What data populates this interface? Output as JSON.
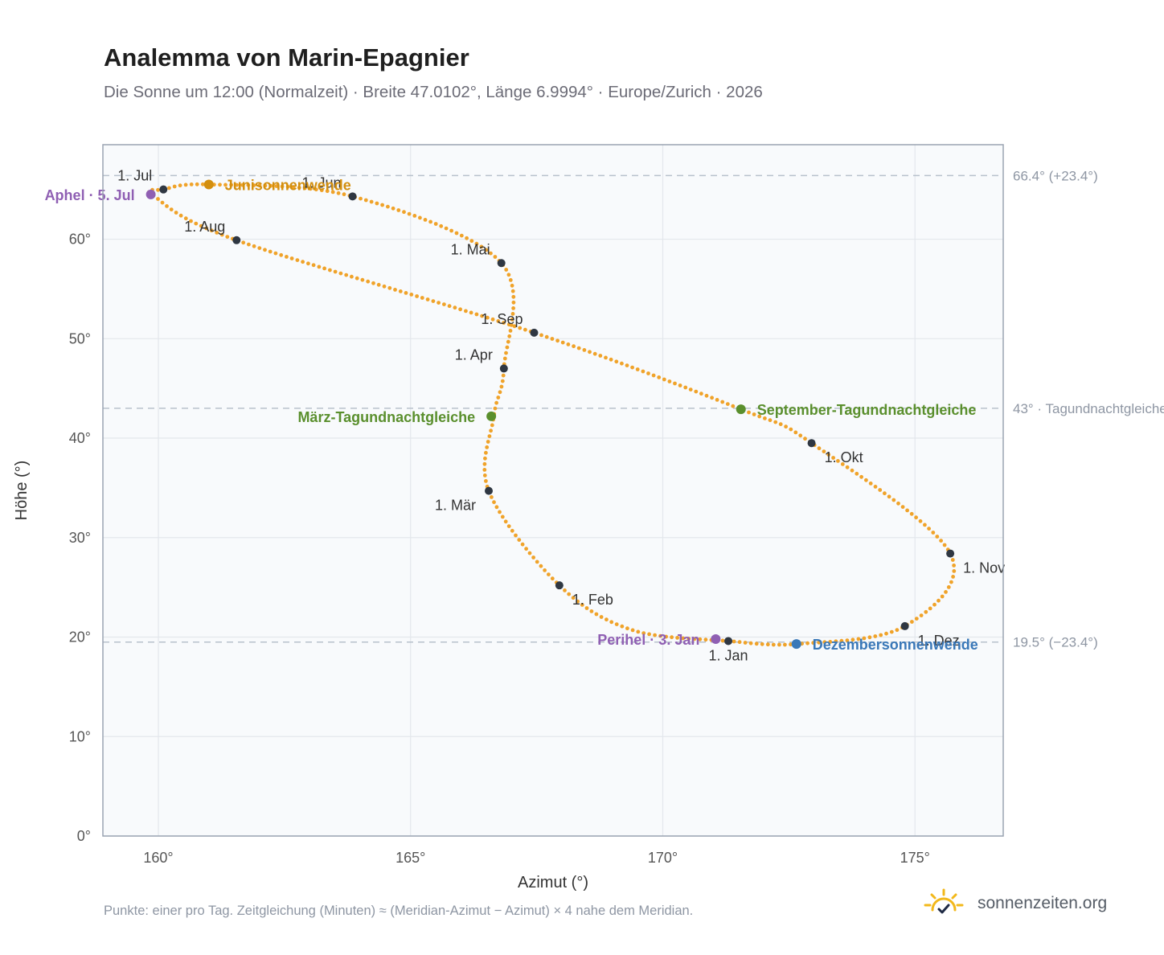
{
  "header": {
    "title": "Analemma von Marin-Epagnier",
    "subtitle": "Die Sonne um 12:00 (Normalzeit) · Breite 47.0102°, Länge 6.9994° · Europe/Zurich · 2026"
  },
  "footer": {
    "note": "Punkte: einer pro Tag. Zeitgleichung (Minuten) ≈ (Meridian-Azimut − Azimut) × 4 nahe dem Meridian.",
    "brand": "sonnenzeiten.org",
    "logo_icon": "sun-check-icon"
  },
  "colors": {
    "curve": "#f0a32a",
    "month_marker": "#2f3742",
    "aphel_perihel": "#8f5fb3",
    "june_solstice": "#d38f0f",
    "equinox": "#5a8f2d",
    "december_solstice": "#3a78b8",
    "plot_background": "#f8fafc",
    "plot_border": "#9aa4b2",
    "grid": "#e3e7ec",
    "reference_line": "#b8c1cc"
  },
  "chart_data": {
    "type": "scatter",
    "xlabel": "Azimut (°)",
    "ylabel": "Höhe (°)",
    "xlim": [
      158.9,
      176.75
    ],
    "ylim": [
      0,
      69.5
    ],
    "xticks": [
      160,
      165,
      170,
      175
    ],
    "xtick_labels": [
      "160°",
      "165°",
      "170°",
      "175°"
    ],
    "yticks": [
      0,
      10,
      20,
      30,
      40,
      50,
      60
    ],
    "ytick_labels": [
      "0°",
      "10°",
      "20°",
      "30°",
      "40°",
      "50°",
      "60°"
    ],
    "grid": true,
    "reference_lines": [
      {
        "y": 66.4,
        "label": "66.4° (+23.4°)"
      },
      {
        "y": 43.0,
        "label": "43° · Tagundnachtgleiche"
      },
      {
        "y": 19.5,
        "label": "19.5° (−23.4°)"
      }
    ],
    "path_anchors": [
      {
        "x": 171.3,
        "y": 19.6
      },
      {
        "x": 169.4,
        "y": 20.7
      },
      {
        "x": 167.95,
        "y": 25.2
      },
      {
        "x": 166.55,
        "y": 34.7
      },
      {
        "x": 166.65,
        "y": 42.2
      },
      {
        "x": 166.85,
        "y": 47.0
      },
      {
        "x": 166.8,
        "y": 57.6
      },
      {
        "x": 163.85,
        "y": 64.3
      },
      {
        "x": 161.0,
        "y": 65.5
      },
      {
        "x": 160.1,
        "y": 65.0
      },
      {
        "x": 159.9,
        "y": 64.4
      },
      {
        "x": 161.55,
        "y": 59.9
      },
      {
        "x": 167.45,
        "y": 50.6
      },
      {
        "x": 171.55,
        "y": 42.9
      },
      {
        "x": 172.95,
        "y": 39.5
      },
      {
        "x": 175.7,
        "y": 28.4
      },
      {
        "x": 174.8,
        "y": 21.1
      },
      {
        "x": 172.65,
        "y": 19.3
      },
      {
        "x": 171.3,
        "y": 19.6
      }
    ],
    "month_markers": [
      {
        "label": "1. Jan",
        "x": 171.3,
        "y": 19.6,
        "label_pos": "below"
      },
      {
        "label": "1. Feb",
        "x": 167.95,
        "y": 25.2,
        "label_pos": "below-right"
      },
      {
        "label": "1. Mär",
        "x": 166.55,
        "y": 34.7,
        "label_pos": "below-left"
      },
      {
        "label": "1. Apr",
        "x": 166.85,
        "y": 47.0,
        "label_pos": "above-left"
      },
      {
        "label": "1. Mai",
        "x": 166.8,
        "y": 57.6,
        "label_pos": "above-left"
      },
      {
        "label": "1. Jun",
        "x": 163.85,
        "y": 64.3,
        "label_pos": "above-left"
      },
      {
        "label": "1. Jul",
        "x": 160.1,
        "y": 65.0,
        "label_pos": "above-left"
      },
      {
        "label": "1. Aug",
        "x": 161.55,
        "y": 59.9,
        "label_pos": "above-left"
      },
      {
        "label": "1. Sep",
        "x": 167.45,
        "y": 50.6,
        "label_pos": "above-left"
      },
      {
        "label": "1. Okt",
        "x": 172.95,
        "y": 39.5,
        "label_pos": "below-right"
      },
      {
        "label": "1. Nov",
        "x": 175.7,
        "y": 28.4,
        "label_pos": "right"
      },
      {
        "label": "1. Dez",
        "x": 174.8,
        "y": 21.1,
        "label_pos": "below-right"
      }
    ],
    "events": [
      {
        "label": "Aphel · 5. Jul",
        "x": 159.85,
        "y": 64.5,
        "color_key": "aphel_perihel",
        "label_pos": "left"
      },
      {
        "label": "Junisonnenwende",
        "x": 161.0,
        "y": 65.5,
        "color_key": "june_solstice",
        "label_pos": "right"
      },
      {
        "label": "März-Tagundnachtgleiche",
        "x": 166.6,
        "y": 42.2,
        "color_key": "equinox",
        "label_pos": "left"
      },
      {
        "label": "September-Tagundnachtgleiche",
        "x": 171.55,
        "y": 42.9,
        "color_key": "equinox",
        "label_pos": "right"
      },
      {
        "label": "Perihel · 3. Jan",
        "x": 171.05,
        "y": 19.8,
        "color_key": "aphel_perihel",
        "label_pos": "left"
      },
      {
        "label": "Dezembersonnenwende",
        "x": 172.65,
        "y": 19.3,
        "color_key": "december_solstice",
        "label_pos": "right"
      }
    ]
  }
}
